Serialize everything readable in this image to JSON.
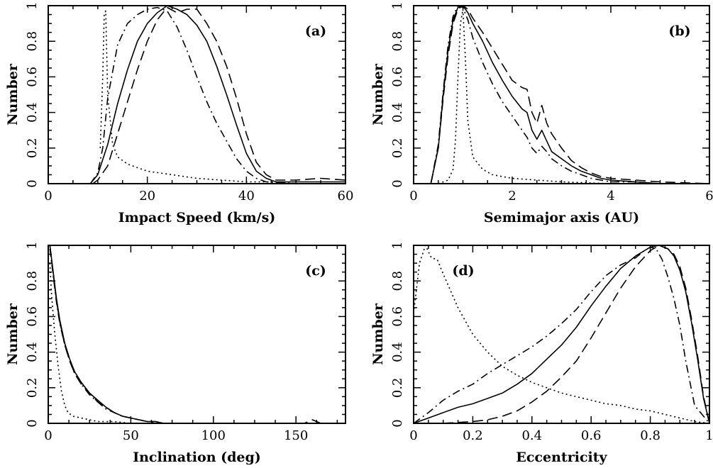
{
  "chart_data": [
    {
      "type": "line",
      "panel_label": "(a)",
      "xlabel": "Impact Speed (km/s)",
      "ylabel": "Number",
      "xlim": [
        0,
        60
      ],
      "ylim": [
        0,
        1
      ],
      "xticks": [
        0,
        20,
        40,
        60
      ],
      "yticks": [
        0,
        0.2,
        0.4,
        0.6,
        0.8,
        1
      ],
      "xticklabels": [
        "0",
        "20",
        "40",
        "60"
      ],
      "yticklabels": [
        "0",
        "0.2",
        "0.4",
        "0.6",
        "0.8",
        "1"
      ],
      "series": [
        {
          "style": "solid",
          "x": [
            8.5,
            10,
            12,
            14,
            16,
            18,
            20,
            22,
            24,
            26,
            28,
            30,
            32,
            34,
            36,
            38,
            40,
            42,
            44,
            46,
            50,
            55,
            60
          ],
          "y": [
            0,
            0.05,
            0.22,
            0.45,
            0.64,
            0.8,
            0.9,
            0.96,
            1.0,
            0.98,
            0.95,
            0.89,
            0.8,
            0.66,
            0.5,
            0.33,
            0.17,
            0.07,
            0.03,
            0.01,
            0.01,
            0.01,
            0.01
          ]
        },
        {
          "style": "dashed",
          "x": [
            9,
            10,
            12,
            14,
            16,
            18,
            20,
            22,
            24,
            26,
            28,
            30,
            32,
            34,
            36,
            38,
            40,
            42,
            44,
            46,
            50,
            55,
            60
          ],
          "y": [
            0,
            0.02,
            0.1,
            0.28,
            0.46,
            0.64,
            0.8,
            0.92,
            0.99,
            0.96,
            0.98,
            0.98,
            0.9,
            0.8,
            0.66,
            0.48,
            0.28,
            0.12,
            0.05,
            0.02,
            0.02,
            0.03,
            0.02
          ]
        },
        {
          "style": "dashdot",
          "x": [
            8.5,
            10,
            11,
            12,
            14,
            16,
            18,
            20,
            22,
            24,
            26,
            28,
            30,
            32,
            34,
            36,
            38,
            40,
            42,
            44,
            50,
            60
          ],
          "y": [
            0,
            0.06,
            0.2,
            0.48,
            0.78,
            0.9,
            0.95,
            0.98,
            0.99,
            0.97,
            0.88,
            0.75,
            0.6,
            0.46,
            0.34,
            0.24,
            0.14,
            0.07,
            0.03,
            0.01,
            0.0,
            0.0
          ]
        },
        {
          "style": "dotted",
          "x": [
            10.5,
            11.0,
            11.3,
            11.6,
            12,
            13,
            14,
            16,
            18,
            20,
            25,
            30,
            35,
            40,
            45,
            50,
            60
          ],
          "y": [
            0.2,
            0.6,
            0.95,
            0.97,
            0.5,
            0.22,
            0.15,
            0.11,
            0.09,
            0.07,
            0.05,
            0.03,
            0.02,
            0.01,
            0.01,
            0.0,
            0.0
          ]
        }
      ]
    },
    {
      "type": "line",
      "panel_label": "(b)",
      "xlabel": "Semimajor axis (AU)",
      "ylabel": "Number",
      "xlim": [
        0,
        6
      ],
      "ylim": [
        0,
        1
      ],
      "xticks": [
        0,
        2,
        4,
        6
      ],
      "yticks": [
        0,
        0.2,
        0.4,
        0.6,
        0.8,
        1
      ],
      "xticklabels": [
        "0",
        "2",
        "4",
        "6"
      ],
      "yticklabels": [
        "0",
        "0.2",
        "0.4",
        "0.6",
        "0.8",
        "1"
      ],
      "series": [
        {
          "style": "solid",
          "x": [
            0.35,
            0.5,
            0.6,
            0.7,
            0.8,
            0.9,
            1.0,
            1.1,
            1.2,
            1.4,
            1.6,
            1.8,
            2.0,
            2.2,
            2.3,
            2.4,
            2.5,
            2.6,
            2.7,
            2.8,
            3.0,
            3.2,
            3.4,
            3.6,
            3.8,
            4.0,
            4.5,
            5.0,
            6.0
          ],
          "y": [
            0,
            0.2,
            0.5,
            0.75,
            0.92,
            0.99,
            1.0,
            0.96,
            0.9,
            0.8,
            0.68,
            0.58,
            0.49,
            0.42,
            0.4,
            0.3,
            0.25,
            0.3,
            0.24,
            0.18,
            0.14,
            0.1,
            0.07,
            0.05,
            0.03,
            0.02,
            0.01,
            0.0,
            0.0
          ]
        },
        {
          "style": "dashed",
          "x": [
            0.35,
            0.5,
            0.6,
            0.7,
            0.8,
            0.9,
            1.0,
            1.1,
            1.2,
            1.4,
            1.6,
            1.8,
            2.0,
            2.2,
            2.3,
            2.4,
            2.5,
            2.6,
            2.7,
            2.8,
            3.0,
            3.2,
            3.4,
            3.6,
            3.8,
            4.0,
            4.5,
            5.0,
            6.0
          ],
          "y": [
            0,
            0.2,
            0.48,
            0.72,
            0.9,
            0.98,
            1.0,
            0.98,
            0.93,
            0.85,
            0.76,
            0.67,
            0.58,
            0.54,
            0.53,
            0.4,
            0.34,
            0.44,
            0.34,
            0.28,
            0.2,
            0.13,
            0.09,
            0.06,
            0.04,
            0.03,
            0.02,
            0.01,
            0.0
          ]
        },
        {
          "style": "dashdot",
          "x": [
            0.35,
            0.5,
            0.6,
            0.7,
            0.8,
            0.9,
            1.0,
            1.1,
            1.2,
            1.4,
            1.6,
            1.8,
            2.0,
            2.2,
            2.3,
            2.4,
            2.5,
            2.6,
            2.7,
            2.8,
            3.0,
            3.2,
            3.4,
            3.6,
            3.8,
            4.0,
            4.5,
            5.0,
            6.0
          ],
          "y": [
            0,
            0.22,
            0.52,
            0.78,
            0.94,
            1.0,
            0.99,
            0.92,
            0.82,
            0.68,
            0.56,
            0.46,
            0.38,
            0.3,
            0.26,
            0.2,
            0.17,
            0.21,
            0.18,
            0.14,
            0.1,
            0.07,
            0.05,
            0.03,
            0.02,
            0.01,
            0.01,
            0.0,
            0.0
          ]
        },
        {
          "style": "dotted",
          "x": [
            0.5,
            0.7,
            0.8,
            0.85,
            0.9,
            0.95,
            1.0,
            1.05,
            1.1,
            1.2,
            1.4,
            1.6,
            1.8,
            2.0,
            2.5,
            3.0,
            4.0,
            5.0,
            6.0
          ],
          "y": [
            0,
            0.02,
            0.08,
            0.25,
            0.6,
            0.9,
            0.98,
            0.7,
            0.35,
            0.15,
            0.08,
            0.05,
            0.04,
            0.03,
            0.02,
            0.01,
            0.0,
            0.0,
            0.0
          ]
        }
      ]
    },
    {
      "type": "line",
      "panel_label": "(c)",
      "xlabel": "Inclination (deg)",
      "ylabel": "Number",
      "xlim": [
        0,
        180
      ],
      "ylim": [
        0,
        1
      ],
      "xticks": [
        0,
        50,
        100,
        150
      ],
      "yticks": [
        0,
        0.2,
        0.4,
        0.6,
        0.8,
        1
      ],
      "xticklabels": [
        "0",
        "50",
        "100",
        "150"
      ],
      "yticklabels": [
        "0",
        "0.2",
        "0.4",
        "0.6",
        "0.8",
        "1"
      ],
      "series": [
        {
          "style": "solid",
          "x": [
            1,
            3,
            5,
            7,
            10,
            13,
            16,
            20,
            25,
            30,
            35,
            40,
            45,
            50,
            55,
            60,
            65,
            70,
            80,
            100,
            150,
            180
          ],
          "y": [
            1.0,
            0.85,
            0.7,
            0.58,
            0.45,
            0.36,
            0.29,
            0.23,
            0.17,
            0.13,
            0.09,
            0.06,
            0.04,
            0.03,
            0.02,
            0.01,
            0.01,
            0.0,
            0.0,
            0.0,
            0.0,
            0.0
          ]
        },
        {
          "style": "dashed",
          "x": [
            1,
            3,
            5,
            7,
            10,
            13,
            16,
            20,
            25,
            30,
            35,
            40,
            45,
            50,
            55,
            60,
            65,
            70,
            80,
            100,
            155,
            160,
            165,
            180
          ],
          "y": [
            1.0,
            0.84,
            0.69,
            0.57,
            0.44,
            0.35,
            0.28,
            0.22,
            0.17,
            0.12,
            0.09,
            0.06,
            0.04,
            0.03,
            0.02,
            0.01,
            0.01,
            0.0,
            0.0,
            0.0,
            0.0,
            0.02,
            0.0,
            0.0
          ]
        },
        {
          "style": "dashdot",
          "x": [
            1,
            3,
            5,
            7,
            10,
            13,
            16,
            20,
            25,
            30,
            35,
            40,
            45,
            50,
            55,
            60,
            65,
            70,
            80,
            100,
            150,
            180
          ],
          "y": [
            0.98,
            0.83,
            0.68,
            0.56,
            0.44,
            0.35,
            0.28,
            0.22,
            0.16,
            0.12,
            0.08,
            0.06,
            0.04,
            0.03,
            0.02,
            0.01,
            0.0,
            0.0,
            0.0,
            0.0,
            0.0,
            0.0
          ]
        },
        {
          "style": "dotted",
          "x": [
            1,
            2,
            4,
            6,
            8,
            10,
            12,
            15,
            20,
            25,
            30,
            40,
            50,
            60,
            70,
            180
          ],
          "y": [
            0.9,
            0.72,
            0.5,
            0.32,
            0.18,
            0.1,
            0.06,
            0.04,
            0.03,
            0.02,
            0.01,
            0.01,
            0.0,
            0.0,
            0.0,
            0.0
          ]
        }
      ]
    },
    {
      "type": "line",
      "panel_label": "(d)",
      "xlabel": "Eccentricity",
      "ylabel": "Number",
      "xlim": [
        0,
        1
      ],
      "ylim": [
        0,
        1
      ],
      "xticks": [
        0,
        0.2,
        0.4,
        0.6,
        0.8,
        1
      ],
      "yticks": [
        0,
        0.2,
        0.4,
        0.6,
        0.8,
        1
      ],
      "xticklabels": [
        "0",
        "0.2",
        "0.4",
        "0.6",
        "0.8",
        "1"
      ],
      "yticklabels": [
        "0",
        "0.2",
        "0.4",
        "0.6",
        "0.8",
        "1"
      ],
      "series": [
        {
          "style": "solid",
          "x": [
            0.0,
            0.05,
            0.1,
            0.15,
            0.2,
            0.25,
            0.3,
            0.35,
            0.4,
            0.45,
            0.5,
            0.55,
            0.6,
            0.65,
            0.7,
            0.75,
            0.8,
            0.83,
            0.86,
            0.88,
            0.9,
            0.92,
            0.94,
            0.96,
            0.98,
            1.0
          ],
          "y": [
            0.0,
            0.03,
            0.06,
            0.09,
            0.11,
            0.14,
            0.17,
            0.22,
            0.28,
            0.36,
            0.44,
            0.54,
            0.66,
            0.77,
            0.87,
            0.94,
            0.99,
            1.0,
            0.98,
            0.94,
            0.86,
            0.74,
            0.56,
            0.36,
            0.14,
            0.0
          ]
        },
        {
          "style": "dashed",
          "x": [
            0.0,
            0.1,
            0.2,
            0.25,
            0.3,
            0.35,
            0.4,
            0.45,
            0.5,
            0.55,
            0.6,
            0.65,
            0.7,
            0.75,
            0.8,
            0.83,
            0.86,
            0.88,
            0.9,
            0.92,
            0.94,
            0.96,
            0.98,
            1.0
          ],
          "y": [
            0.0,
            0.0,
            0.01,
            0.02,
            0.04,
            0.07,
            0.12,
            0.18,
            0.26,
            0.35,
            0.48,
            0.62,
            0.76,
            0.88,
            0.97,
            1.0,
            0.98,
            0.95,
            0.88,
            0.76,
            0.58,
            0.38,
            0.15,
            0.0
          ]
        },
        {
          "style": "dashdot",
          "x": [
            0.0,
            0.05,
            0.1,
            0.15,
            0.2,
            0.25,
            0.3,
            0.35,
            0.4,
            0.45,
            0.5,
            0.55,
            0.6,
            0.65,
            0.7,
            0.75,
            0.78,
            0.8,
            0.82,
            0.84,
            0.86,
            0.88,
            0.9,
            0.92,
            0.95,
            1.0
          ],
          "y": [
            0.0,
            0.06,
            0.13,
            0.18,
            0.22,
            0.28,
            0.33,
            0.38,
            0.43,
            0.49,
            0.56,
            0.64,
            0.74,
            0.83,
            0.89,
            0.93,
            0.97,
            0.99,
            0.98,
            0.92,
            0.82,
            0.7,
            0.55,
            0.35,
            0.1,
            0.0
          ]
        },
        {
          "style": "dotted",
          "x": [
            0.0,
            0.02,
            0.04,
            0.06,
            0.08,
            0.1,
            0.15,
            0.2,
            0.25,
            0.3,
            0.35,
            0.4,
            0.45,
            0.5,
            0.55,
            0.6,
            0.65,
            0.7,
            0.75,
            0.8,
            0.85,
            0.9,
            0.95,
            1.0
          ],
          "y": [
            0.62,
            0.9,
            1.0,
            0.93,
            0.92,
            0.84,
            0.65,
            0.5,
            0.4,
            0.32,
            0.27,
            0.23,
            0.2,
            0.17,
            0.15,
            0.13,
            0.11,
            0.1,
            0.08,
            0.07,
            0.05,
            0.03,
            0.01,
            0.0
          ]
        }
      ]
    }
  ]
}
